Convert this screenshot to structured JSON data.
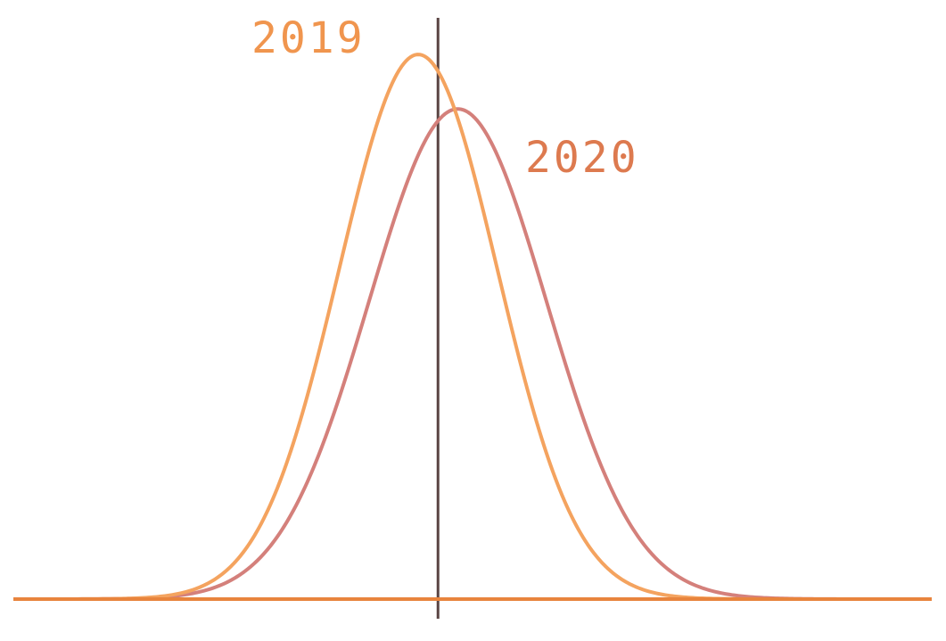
{
  "chart_data": {
    "type": "line",
    "title": "",
    "xlabel": "",
    "ylabel": "",
    "xlim": [
      -4.3,
      5.0
    ],
    "ylim": [
      0,
      0.55
    ],
    "grid": false,
    "legend": "inline labels",
    "axis_color": "#5a4443",
    "baseline_color": "#e8843d",
    "series": [
      {
        "name": "2019",
        "color": "#f4a35f",
        "label_color": "#f0954e",
        "mean": -0.2,
        "std": 0.8,
        "peak": 0.5
      },
      {
        "name": "2020",
        "color": "#d4807b",
        "label_color": "#dd7a4f",
        "mean": 0.2,
        "std": 0.9,
        "peak": 0.45
      }
    ]
  }
}
